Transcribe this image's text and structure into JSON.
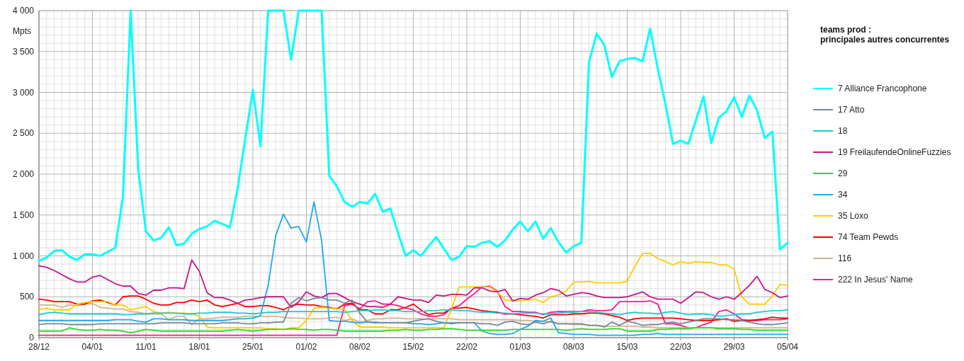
{
  "chart_data": {
    "type": "line",
    "ylabel": "Mpts",
    "legend_title": "teams prod :\nprincipales autres concurrentes",
    "legend": "right",
    "grid": true,
    "ylim": [
      0,
      4000
    ],
    "categories": [
      "28/12",
      null,
      null,
      null,
      null,
      null,
      null,
      "04/01",
      null,
      null,
      null,
      null,
      null,
      null,
      "11/01",
      null,
      null,
      null,
      null,
      null,
      null,
      "18/01",
      null,
      null,
      null,
      null,
      null,
      null,
      "25/01",
      null,
      null,
      null,
      null,
      null,
      null,
      "01/02",
      null,
      null,
      null,
      null,
      null,
      null,
      "08/02",
      null,
      null,
      null,
      null,
      null,
      null,
      "15/02",
      null,
      null,
      null,
      null,
      null,
      null,
      "22/02",
      null,
      null,
      null,
      null,
      null,
      null,
      "01/03",
      null,
      null,
      null,
      null,
      null,
      null,
      "08/03",
      null,
      null,
      null,
      null,
      null,
      null,
      "15/03",
      null,
      null,
      null,
      null,
      null,
      null,
      "22/03",
      null,
      null,
      null,
      null,
      null,
      null,
      "29/03",
      null,
      null,
      null,
      null,
      null,
      null,
      "05/04"
    ],
    "yticks": [
      0,
      500,
      {
        "value": 1000,
        "label": "1 000"
      },
      {
        "value": 1500,
        "label": "1 500"
      },
      {
        "value": 2000,
        "label": "2 000"
      },
      {
        "value": 2500,
        "label": "2 500"
      },
      {
        "value": 3000,
        "label": "3 000"
      },
      {
        "value": 3500,
        "label": "3 500"
      },
      {
        "value": 4000,
        "label": "4 000"
      }
    ],
    "series": [
      {
        "name": "7 Alliance Francophone",
        "color": "#00ffff",
        "values": [
          940,
          980,
          1060,
          1070,
          990,
          950,
          1020,
          1020,
          1000,
          1050,
          1100,
          1730,
          4000,
          2050,
          1300,
          1190,
          1220,
          1350,
          1130,
          1150,
          1270,
          1330,
          1360,
          1430,
          1390,
          1350,
          1820,
          2430,
          3030,
          2340,
          4000,
          4000,
          4000,
          3400,
          4000,
          4000,
          4000,
          4000,
          1980,
          1850,
          1660,
          1600,
          1660,
          1640,
          1760,
          1540,
          1580,
          1280,
          1000,
          1070,
          1000,
          1120,
          1230,
          1090,
          950,
          990,
          1120,
          1110,
          1160,
          1180,
          1110,
          1190,
          1320,
          1420,
          1300,
          1420,
          1210,
          1340,
          1170,
          1040,
          1120,
          1160,
          3370,
          3720,
          3580,
          3190,
          3380,
          3410,
          3420,
          3380,
          3780,
          3290,
          2860,
          2370,
          2410,
          2370,
          2660,
          2950,
          2380,
          2690,
          2770,
          2940,
          2700,
          2960,
          2780,
          2440,
          2520,
          1080,
          1160
        ]
      },
      {
        "name": "17 Atto",
        "color": "#778899",
        "values": [
          160,
          170,
          170,
          170,
          160,
          160,
          160,
          160,
          170,
          170,
          170,
          170,
          170,
          170,
          170,
          170,
          180,
          180,
          180,
          180,
          170,
          170,
          170,
          170,
          180,
          180,
          180,
          170,
          170,
          180,
          180,
          190,
          190,
          420,
          490,
          450,
          480,
          490,
          460,
          460,
          420,
          460,
          300,
          190,
          180,
          180,
          180,
          180,
          180,
          200,
          220,
          230,
          200,
          180,
          170,
          180,
          180,
          180,
          170,
          170,
          150,
          190,
          200,
          170,
          160,
          190,
          170,
          200,
          170,
          170,
          170,
          170,
          150,
          150,
          130,
          190,
          150,
          200,
          180,
          150,
          160,
          160,
          180,
          190,
          170,
          190,
          210,
          230,
          230,
          230,
          220,
          220,
          210,
          190,
          170,
          160,
          160,
          170,
          180
        ]
      },
      {
        "name": "18",
        "color": "#1ecbd2",
        "values": [
          280,
          300,
          310,
          300,
          290,
          290,
          290,
          290,
          290,
          290,
          290,
          280,
          280,
          290,
          290,
          300,
          300,
          300,
          300,
          290,
          290,
          300,
          300,
          310,
          310,
          310,
          300,
          300,
          290,
          300,
          310,
          310,
          320,
          320,
          320,
          320,
          320,
          320,
          320,
          320,
          310,
          320,
          330,
          330,
          340,
          340,
          330,
          330,
          320,
          320,
          320,
          330,
          330,
          340,
          340,
          330,
          330,
          320,
          310,
          310,
          300,
          300,
          290,
          300,
          300,
          300,
          290,
          290,
          300,
          310,
          310,
          320,
          320,
          310,
          300,
          290,
          280,
          300,
          310,
          300,
          300,
          290,
          310,
          320,
          300,
          280,
          290,
          290,
          280,
          260,
          270,
          280,
          290,
          290,
          310,
          320,
          330,
          330,
          340
        ]
      },
      {
        "name": "19 FreilaufendeOnlineFuzzies",
        "color": "#c71585",
        "values": [
          880,
          860,
          820,
          770,
          720,
          680,
          680,
          740,
          760,
          710,
          660,
          630,
          630,
          540,
          520,
          580,
          580,
          610,
          610,
          600,
          950,
          810,
          550,
          490,
          490,
          460,
          420,
          460,
          470,
          490,
          500,
          500,
          500,
          370,
          440,
          560,
          510,
          490,
          540,
          540,
          490,
          440,
          410,
          380,
          380,
          370,
          410,
          500,
          480,
          460,
          460,
          430,
          520,
          510,
          530,
          530,
          520,
          610,
          610,
          570,
          560,
          590,
          450,
          480,
          470,
          520,
          550,
          600,
          580,
          510,
          530,
          550,
          540,
          510,
          490,
          490,
          490,
          500,
          530,
          560,
          500,
          470,
          470,
          470,
          420,
          490,
          560,
          550,
          500,
          470,
          500,
          470,
          550,
          640,
          750,
          590,
          550,
          490,
          510
        ]
      },
      {
        "name": "29",
        "color": "#22dd22",
        "values": [
          80,
          80,
          80,
          80,
          120,
          100,
          90,
          90,
          100,
          90,
          90,
          80,
          60,
          80,
          100,
          90,
          80,
          80,
          80,
          80,
          80,
          80,
          80,
          80,
          80,
          90,
          100,
          90,
          80,
          90,
          100,
          100,
          100,
          110,
          100,
          100,
          90,
          100,
          100,
          90,
          80,
          80,
          80,
          80,
          80,
          80,
          90,
          90,
          100,
          90,
          90,
          100,
          100,
          110,
          110,
          100,
          90,
          90,
          90,
          90,
          90,
          90,
          100,
          100,
          100,
          100,
          100,
          100,
          100,
          90,
          100,
          110,
          100,
          100,
          100,
          110,
          110,
          80,
          80,
          80,
          80,
          100,
          100,
          110,
          110,
          110,
          120,
          120,
          120,
          110,
          110,
          110,
          100,
          100,
          90,
          90,
          90,
          90,
          90
        ]
      },
      {
        "name": "34",
        "color": "#1ea8f0",
        "values": [
          210,
          210,
          210,
          210,
          210,
          210,
          210,
          210,
          210,
          210,
          220,
          220,
          220,
          200,
          190,
          230,
          230,
          220,
          220,
          220,
          210,
          210,
          210,
          210,
          210,
          220,
          230,
          230,
          240,
          270,
          640,
          1250,
          1510,
          1340,
          1360,
          1170,
          1660,
          1190,
          210,
          200,
          200,
          190,
          180,
          190,
          190,
          180,
          180,
          180,
          180,
          170,
          170,
          160,
          170,
          180,
          180,
          180,
          180,
          180,
          80,
          50,
          40,
          40,
          50,
          100,
          140,
          210,
          200,
          240,
          60,
          50,
          40,
          40,
          40,
          30,
          30,
          30,
          30,
          30,
          30,
          40,
          40,
          50,
          40,
          40,
          40,
          40,
          40,
          40,
          40,
          40,
          40,
          40,
          40,
          40,
          40,
          40,
          40,
          40,
          40
        ]
      },
      {
        "name": "35 Loxo",
        "color": "#ffcc00",
        "values": [
          340,
          360,
          340,
          340,
          340,
          410,
          430,
          440,
          440,
          440,
          400,
          400,
          340,
          360,
          380,
          320,
          300,
          310,
          300,
          300,
          290,
          260,
          130,
          120,
          120,
          120,
          120,
          120,
          120,
          120,
          110,
          110,
          100,
          120,
          120,
          210,
          360,
          370,
          360,
          350,
          350,
          210,
          130,
          130,
          130,
          130,
          120,
          120,
          120,
          120,
          120,
          120,
          120,
          120,
          350,
          620,
          620,
          620,
          620,
          620,
          560,
          460,
          450,
          450,
          460,
          470,
          430,
          500,
          520,
          570,
          680,
          680,
          690,
          670,
          670,
          670,
          670,
          690,
          870,
          1030,
          1030,
          970,
          930,
          890,
          930,
          910,
          930,
          920,
          920,
          890,
          890,
          840,
          500,
          410,
          410,
          410,
          510,
          650,
          640
        ]
      },
      {
        "name": "74 Team Pewds",
        "color": "#ff0000",
        "values": [
          470,
          460,
          440,
          440,
          440,
          410,
          410,
          450,
          460,
          430,
          400,
          500,
          510,
          510,
          470,
          420,
          400,
          400,
          430,
          430,
          460,
          440,
          460,
          400,
          380,
          400,
          420,
          380,
          380,
          390,
          390,
          370,
          340,
          390,
          410,
          400,
          400,
          380,
          370,
          350,
          410,
          420,
          340,
          340,
          290,
          290,
          340,
          340,
          370,
          410,
          340,
          280,
          300,
          300,
          360,
          360,
          370,
          350,
          330,
          320,
          310,
          290,
          290,
          280,
          270,
          260,
          240,
          280,
          280,
          280,
          290,
          290,
          300,
          300,
          290,
          270,
          250,
          210,
          230,
          240,
          240,
          240,
          240,
          240,
          230,
          220,
          210,
          210,
          210,
          220,
          230,
          200,
          210,
          210,
          220,
          230,
          250,
          240,
          240
        ]
      },
      {
        "name": "116",
        "color": "#d2b48c",
        "values": [
          400,
          400,
          400,
          370,
          400,
          390,
          410,
          420,
          370,
          360,
          350,
          350,
          320,
          310,
          290,
          290,
          290,
          220,
          260,
          260,
          160,
          230,
          230,
          240,
          250,
          250,
          250,
          260,
          260,
          260,
          260,
          260,
          250,
          240,
          240,
          230,
          230,
          230,
          240,
          250,
          210,
          230,
          190,
          210,
          230,
          230,
          240,
          240,
          230,
          230,
          230,
          230,
          230,
          230,
          230,
          220,
          220,
          220,
          220,
          220,
          220,
          220,
          220,
          210,
          210,
          200,
          200,
          190,
          170,
          170,
          160,
          160,
          150,
          150,
          140,
          140,
          140,
          140,
          140,
          130,
          130,
          120,
          120,
          120,
          120,
          120,
          120,
          120,
          120,
          120,
          120,
          120,
          120,
          120,
          120,
          120,
          120,
          120,
          120
        ]
      },
      {
        "name": "222 In Jesus' Name",
        "color": "#ff1493",
        "values": [
          30,
          30,
          30,
          30,
          30,
          30,
          30,
          30,
          30,
          30,
          30,
          30,
          30,
          30,
          30,
          30,
          30,
          30,
          30,
          30,
          30,
          30,
          30,
          30,
          30,
          30,
          30,
          30,
          30,
          30,
          30,
          30,
          30,
          30,
          30,
          30,
          30,
          30,
          30,
          30,
          390,
          410,
          350,
          440,
          450,
          410,
          410,
          390,
          360,
          340,
          290,
          260,
          260,
          280,
          360,
          390,
          470,
          540,
          620,
          630,
          570,
          380,
          320,
          320,
          310,
          310,
          280,
          310,
          320,
          320,
          320,
          320,
          340,
          330,
          330,
          340,
          440,
          440,
          440,
          440,
          450,
          410,
          170,
          170,
          150,
          120,
          120,
          160,
          190,
          320,
          340,
          290,
          220,
          210,
          210,
          220,
          220,
          220,
          230
        ]
      }
    ]
  }
}
